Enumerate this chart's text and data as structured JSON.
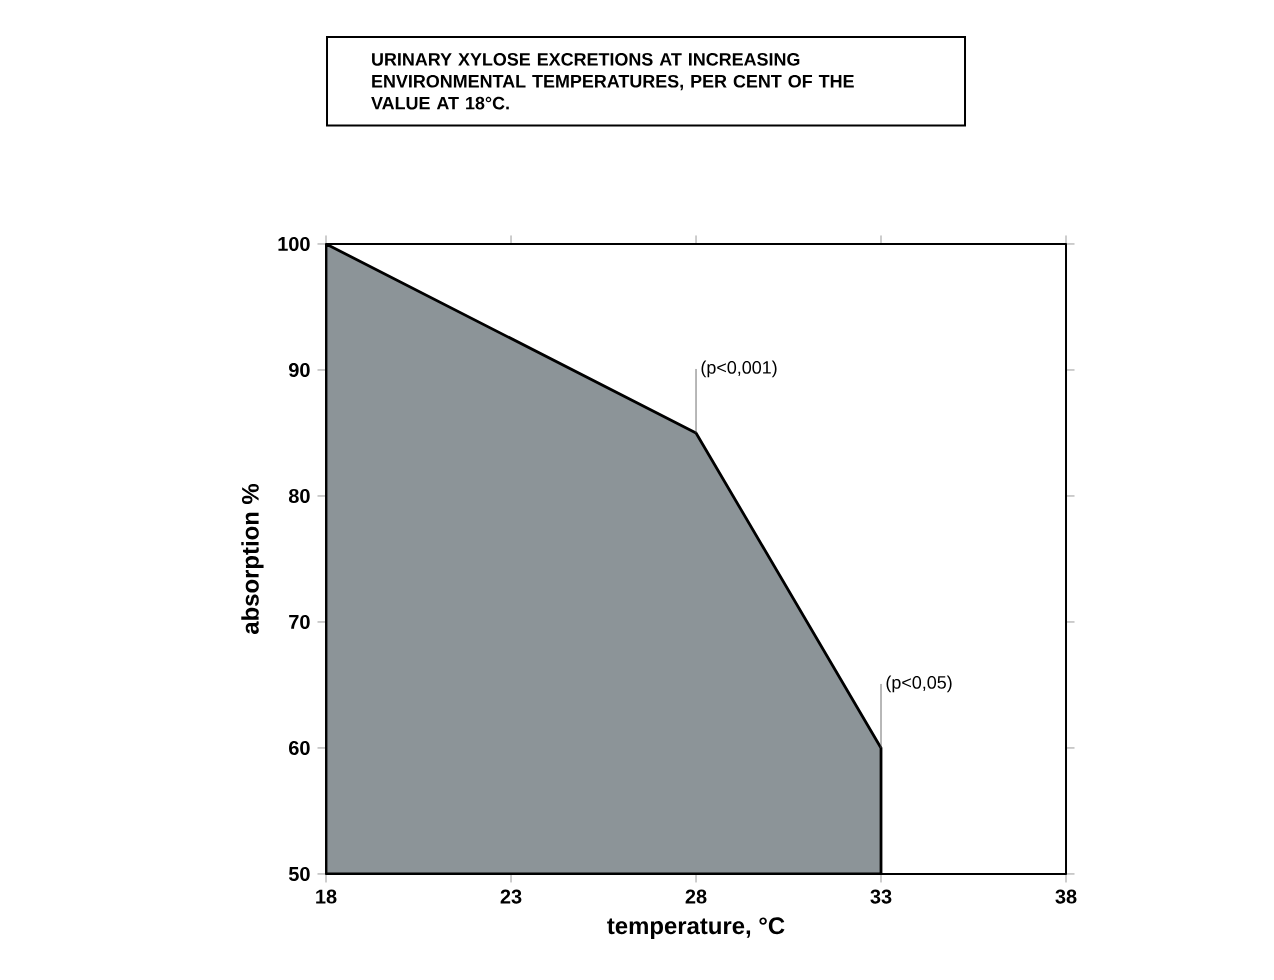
{
  "chart_data": {
    "type": "area",
    "title": "URINARY XYLOSE EXCRETIONS AT INCREASING ENVIRONMENTAL TEMPERATURES, PER CENT OF THE VALUE AT 18°C.",
    "xlabel": "temperature, °C",
    "ylabel": "absorption %",
    "x": [
      18,
      28,
      33
    ],
    "values": [
      100,
      85,
      60
    ],
    "color": "#8c9498",
    "xlim": [
      18,
      38
    ],
    "xticks": [
      18,
      23,
      28,
      33,
      38
    ],
    "ylim": [
      50,
      100
    ],
    "yticks": [
      50,
      60,
      70,
      80,
      90,
      100
    ],
    "annotations": [
      {
        "text": "(p<0,001)",
        "x": 28,
        "y": 85
      },
      {
        "text": "(p<0,05)",
        "x": 33,
        "y": 60
      }
    ]
  }
}
